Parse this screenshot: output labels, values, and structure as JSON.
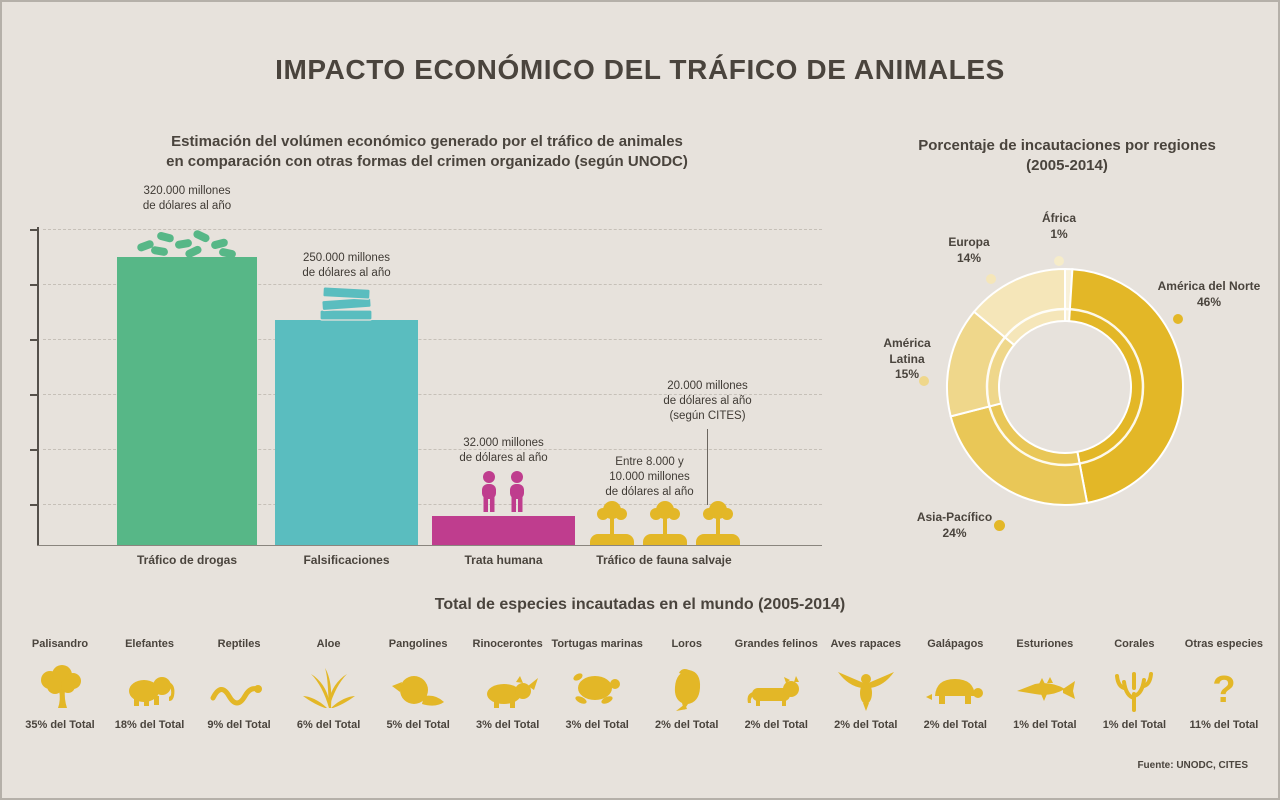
{
  "page": {
    "title": "IMPACTO ECONÓMICO DEL TRÁFICO DE ANIMALES",
    "source": "Fuente: UNODC, CITES"
  },
  "bar_chart": {
    "title_line1": "Estimación del volúmen económico generado por el tráfico de animales",
    "title_line2": "en comparación con otras formas del crimen organizado (según UNODC)",
    "bars": [
      {
        "label": "Tráfico de drogas",
        "value": 320000,
        "color": "#57b787",
        "icon": "pills",
        "annotation_lines": [
          "320.000 millones",
          "de dólares al año"
        ]
      },
      {
        "label": "Falsificaciones",
        "value": 250000,
        "color": "#5abdbf",
        "icon": "money",
        "annotation_lines": [
          "250.000 millones",
          "de dólares al año"
        ]
      },
      {
        "label": "Trata humana",
        "value": 32000,
        "color": "#bf3d8e",
        "icon": "people",
        "annotation_lines": [
          "32.000 millones",
          "de dólares al año"
        ]
      },
      {
        "label": "Tráfico de fauna salvaje",
        "value": 9000,
        "color": "#e3b727",
        "icon": "trees",
        "annotation_lines": [
          "Entre 8.000 y",
          "10.000 millones",
          "de dólares al año"
        ],
        "annotation2_lines": [
          "20.000 millones",
          "de dólares al año",
          "(según CITES)"
        ]
      }
    ]
  },
  "donut_chart": {
    "title_line1": "Porcentaje de incautaciones por regiones",
    "title_line2": "(2005-2014)",
    "segments": [
      {
        "label": "África",
        "pct": 1,
        "pct_label": "1%",
        "color": "#f9f1d8",
        "dot_color": "#f6ecc9",
        "label_lines": [
          "África"
        ]
      },
      {
        "label": "América del Norte",
        "pct": 46,
        "pct_label": "46%",
        "color": "#e3b727",
        "dot_color": "#e3b727",
        "label_lines": [
          "América del Norte"
        ]
      },
      {
        "label": "Asia-Pacífico",
        "pct": 24,
        "pct_label": "24%",
        "color": "#e9c757",
        "dot_color": "#e3b727",
        "label_lines": [
          "Asia-Pacífico"
        ]
      },
      {
        "label": "América Latina",
        "pct": 15,
        "pct_label": "15%",
        "color": "#efd78b",
        "dot_color": "#efd78b",
        "label_lines": [
          "América",
          "Latina"
        ]
      },
      {
        "label": "Europa",
        "pct": 14,
        "pct_label": "14%",
        "color": "#f5e6b9",
        "dot_color": "#f5e6b9",
        "label_lines": [
          "Europa"
        ]
      }
    ]
  },
  "species": {
    "title": "Total de especies incautadas en el mundo (2005-2014)",
    "items": [
      {
        "name": "Palisandro",
        "pct": "35% del Total",
        "icon": "tree"
      },
      {
        "name": "Elefantes",
        "pct": "18% del Total",
        "icon": "elephant"
      },
      {
        "name": "Reptiles",
        "pct": "9% del Total",
        "icon": "snake"
      },
      {
        "name": "Aloe",
        "pct": "6% del Total",
        "icon": "aloe"
      },
      {
        "name": "Pangolines",
        "pct": "5% del Total",
        "icon": "pangolin"
      },
      {
        "name": "Rinocerontes",
        "pct": "3% del Total",
        "icon": "rhino"
      },
      {
        "name": "Tortugas marinas",
        "pct": "3% del Total",
        "icon": "turtle"
      },
      {
        "name": "Loros",
        "pct": "2% del Total",
        "icon": "parrot"
      },
      {
        "name": "Grandes felinos",
        "pct": "2% del Total",
        "icon": "feline"
      },
      {
        "name": "Aves rapaces",
        "pct": "2% del Total",
        "icon": "raptor"
      },
      {
        "name": "Galápagos",
        "pct": "2% del Total",
        "icon": "tortoise"
      },
      {
        "name": "Esturiones",
        "pct": "1% del Total",
        "icon": "sturgeon"
      },
      {
        "name": "Corales",
        "pct": "1% del Total",
        "icon": "coral"
      },
      {
        "name": "Otras especies",
        "pct": "11% del Total",
        "icon": "question"
      }
    ]
  },
  "colors": {
    "background": "#e7e2dc",
    "text": "#4a443d",
    "green": "#57b787",
    "teal": "#5abdbf",
    "magenta": "#bf3d8e",
    "gold": "#e3b727"
  },
  "chart_data": [
    {
      "type": "bar",
      "title": "Estimación del volúmen económico generado por el tráfico de animales en comparación con otras formas del crimen organizado (según UNODC)",
      "categories": [
        "Tráfico de drogas",
        "Falsificaciones",
        "Trata humana",
        "Tráfico de fauna salvaje"
      ],
      "values": [
        320000,
        250000,
        32000,
        9000
      ],
      "unit": "millones de dólares al año",
      "annotations": [
        "320.000 millones de dólares al año",
        "250.000 millones de dólares al año",
        "32.000 millones de dólares al año",
        "Entre 8.000 y 10.000 millones de dólares al año; 20.000 millones de dólares al año (según CITES)"
      ],
      "ylim": [
        0,
        350000
      ],
      "grid": "horizontal dashed",
      "xlabel": "",
      "ylabel": ""
    },
    {
      "type": "pie",
      "title": "Porcentaje de incautaciones por regiones (2005-2014)",
      "labels": [
        "África",
        "América del Norte",
        "Asia-Pacífico",
        "América Latina",
        "Europa"
      ],
      "values": [
        1,
        46,
        24,
        15,
        14
      ],
      "unit": "%",
      "style": "donut, starts at 12 o'clock clockwise"
    },
    {
      "type": "bar",
      "title": "Total de especies incautadas en el mundo (2005-2014)",
      "categories": [
        "Palisandro",
        "Elefantes",
        "Reptiles",
        "Aloe",
        "Pangolines",
        "Rinocerontes",
        "Tortugas marinas",
        "Loros",
        "Grandes felinos",
        "Aves rapaces",
        "Galápagos",
        "Esturiones",
        "Corales",
        "Otras especies"
      ],
      "values": [
        35,
        18,
        9,
        6,
        5,
        3,
        3,
        2,
        2,
        2,
        2,
        1,
        1,
        11
      ],
      "unit": "% del Total",
      "style": "pictogram row"
    }
  ]
}
